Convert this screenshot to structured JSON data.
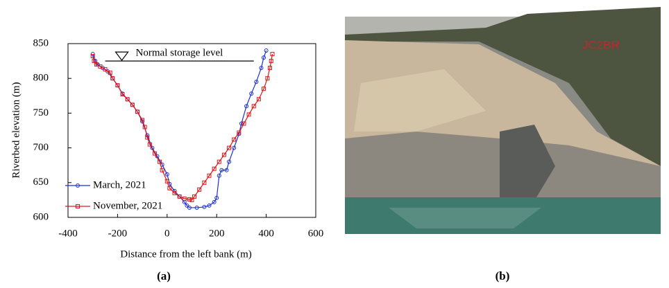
{
  "chart_data": {
    "type": "line",
    "xlabel": "Distance from the left bank (m)",
    "ylabel": "Riverbed elevation (m)",
    "xlim": [
      -400,
      600
    ],
    "xticks": [
      -400,
      -200,
      0,
      200,
      400,
      600
    ],
    "ylim": [
      600,
      850
    ],
    "yticks": [
      600,
      650,
      700,
      750,
      800,
      850
    ],
    "legend": "lower left",
    "annotation": {
      "text": "Normal storage level",
      "value": 825,
      "x": [
        -250,
        350
      ]
    },
    "series": [
      {
        "name": "March, 2021",
        "color": "#1a2fd6",
        "marker": "circle",
        "x": [
          -300,
          -290,
          -280,
          -260,
          -240,
          -220,
          -200,
          -180,
          -160,
          -140,
          -120,
          -100,
          -80,
          -60,
          -40,
          -20,
          0,
          10,
          30,
          50,
          70,
          80,
          90,
          120,
          150,
          170,
          190,
          200,
          210,
          220,
          240,
          250,
          270,
          290,
          300,
          320,
          340,
          360,
          380,
          390,
          400
        ],
        "values": [
          835,
          825,
          820,
          815,
          810,
          800,
          790,
          778,
          770,
          762,
          752,
          738,
          718,
          700,
          688,
          676,
          662,
          648,
          638,
          630,
          622,
          617,
          614,
          614,
          615,
          617,
          622,
          628,
          660,
          668,
          668,
          680,
          700,
          720,
          735,
          760,
          778,
          795,
          815,
          830,
          840
        ]
      },
      {
        "name": "November, 2021",
        "color": "#e01414",
        "marker": "square",
        "x": [
          -300,
          -295,
          -285,
          -270,
          -250,
          -230,
          -220,
          -200,
          -180,
          -160,
          -140,
          -120,
          -100,
          -90,
          -80,
          -70,
          -50,
          -30,
          -20,
          0,
          10,
          30,
          50,
          70,
          90,
          100,
          110,
          130,
          150,
          170,
          190,
          210,
          230,
          250,
          270,
          290,
          310,
          330,
          350,
          370,
          390,
          405,
          415,
          420,
          425
        ],
        "values": [
          832,
          825,
          820,
          817,
          813,
          808,
          800,
          790,
          777,
          770,
          762,
          752,
          740,
          730,
          715,
          705,
          692,
          680,
          668,
          652,
          642,
          635,
          630,
          627,
          626,
          625,
          630,
          640,
          650,
          660,
          670,
          680,
          690,
          700,
          712,
          722,
          735,
          748,
          760,
          770,
          785,
          800,
          815,
          825,
          835
        ]
      }
    ]
  },
  "panels": [
    "(a)",
    "(b)"
  ],
  "photo": {
    "label": "JC2BR"
  }
}
